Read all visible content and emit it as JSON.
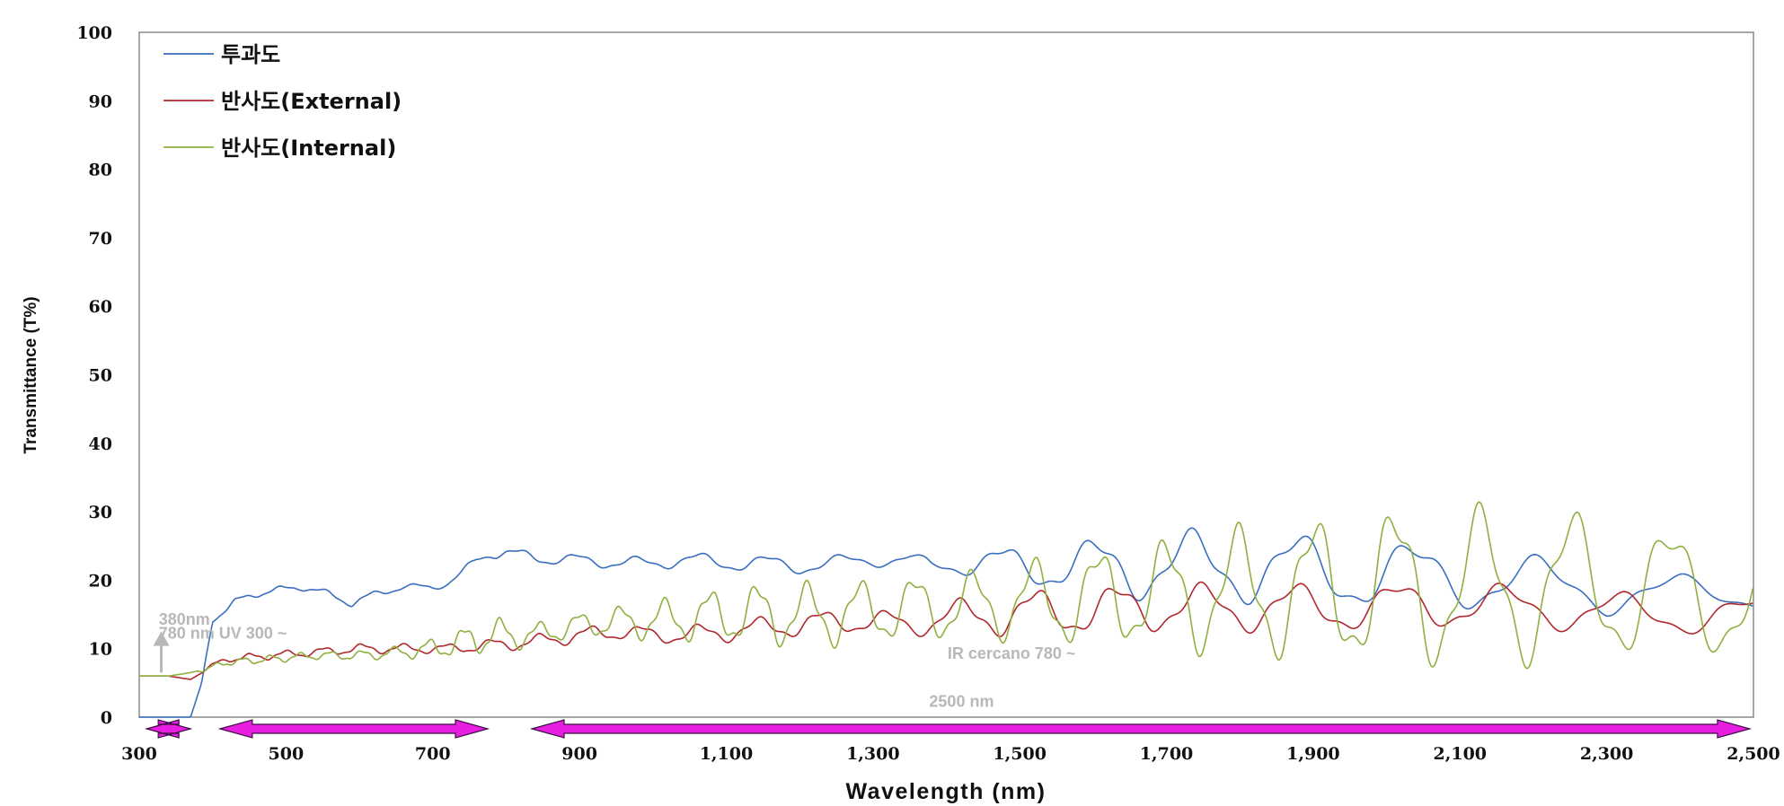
{
  "chart_data": {
    "type": "line",
    "title": "",
    "xlabel": "Wavelength (nm)",
    "ylabel": "Transmittance (T%)",
    "xlim": [
      300,
      2500
    ],
    "ylim": [
      0,
      100
    ],
    "x_ticks": [
      300,
      500,
      700,
      900,
      1100,
      1300,
      1500,
      1700,
      1900,
      2100,
      2300,
      2500
    ],
    "x_tick_labels": [
      "300",
      "500",
      "700",
      "900",
      "1,100",
      "1,300",
      "1,500",
      "1,700",
      "1,900",
      "2,100",
      "2,300",
      "2,500"
    ],
    "y_ticks": [
      0,
      10,
      20,
      30,
      40,
      50,
      60,
      70,
      80,
      90,
      100
    ],
    "y_tick_labels": [
      "0",
      "10",
      "20",
      "30",
      "40",
      "50",
      "60",
      "70",
      "80",
      "90",
      "100"
    ],
    "grid": false,
    "legend_position": "top-left",
    "series": [
      {
        "name": "투과도",
        "color": "#3a6fbf",
        "x": [
          300,
          340,
          370,
          385,
          400,
          430,
          480,
          520,
          560,
          590,
          620,
          660,
          700,
          720,
          740,
          760,
          780,
          800,
          830,
          860,
          900,
          950,
          1000,
          1050,
          1100,
          1150,
          1200,
          1250,
          1300,
          1350,
          1380,
          1420,
          1460,
          1500,
          1550,
          1600,
          1650,
          1700,
          1750,
          1800,
          1850,
          1900,
          1950,
          2000,
          2050,
          2100,
          2150,
          2200,
          2250,
          2300,
          2350,
          2400,
          2450,
          2500
        ],
        "y": [
          0,
          0,
          0,
          5,
          14,
          17,
          18.5,
          19,
          18,
          16.5,
          18,
          19,
          19,
          19.5,
          21,
          23,
          24,
          24,
          23.5,
          23,
          23,
          22.5,
          22.5,
          23,
          22.5,
          22.5,
          22,
          22.5,
          23,
          23,
          22,
          22.5,
          22.5,
          22,
          22,
          22,
          22,
          22,
          22,
          22,
          21.5,
          21.5,
          21,
          21,
          20.5,
          20.5,
          20,
          19.5,
          19,
          18.5,
          18,
          18,
          18,
          18
        ],
        "osc_amp": [
          0,
          0,
          0,
          0,
          0.3,
          0.3,
          0.4,
          0.4,
          0.4,
          0.4,
          0.4,
          0.4,
          0.4,
          0.4,
          0.5,
          0.6,
          0.7,
          0.7,
          0.7,
          0.7,
          0.7,
          0.8,
          0.8,
          0.9,
          1,
          1,
          1,
          1,
          0.9,
          0.9,
          1,
          1.5,
          2,
          2.5,
          3,
          3.5,
          4,
          4.5,
          4.5,
          4.5,
          4.5,
          4.5,
          4.5,
          4.5,
          4,
          4,
          4,
          3.5,
          3,
          3,
          2.5,
          2.5,
          2,
          2
        ],
        "osc_period": 40
      },
      {
        "name": "반사도(External)",
        "color": "#b0282e",
        "x": [
          300,
          340,
          370,
          390,
          420,
          480,
          540,
          600,
          660,
          720,
          780,
          840,
          900,
          960,
          1000,
          1050,
          1100,
          1150,
          1200,
          1250,
          1300,
          1350,
          1400,
          1450,
          1500,
          1550,
          1600,
          1650,
          1700,
          1750,
          1800,
          1850,
          1900,
          1950,
          2000,
          2050,
          2100,
          2150,
          2200,
          2250,
          2300,
          2350,
          2400,
          2450,
          2500
        ],
        "y": [
          6,
          6,
          5.5,
          7,
          8.5,
          9,
          9.5,
          10,
          10,
          10,
          10.5,
          11,
          12,
          12.5,
          12,
          12,
          12.5,
          13,
          13.5,
          14,
          14,
          13.5,
          14.5,
          15,
          15,
          15.5,
          15.5,
          16,
          16,
          16,
          16,
          16,
          16,
          16,
          16,
          16.5,
          16.5,
          16,
          16,
          15.5,
          15.5,
          15,
          15,
          15,
          14.5
        ],
        "osc_amp": [
          0,
          0,
          0,
          0.3,
          0.4,
          0.5,
          0.5,
          0.6,
          0.6,
          0.6,
          0.8,
          0.9,
          1,
          1,
          1,
          1.2,
          1.3,
          1.4,
          1.5,
          1.5,
          1.5,
          1.5,
          2,
          2.5,
          3,
          3,
          3,
          3,
          3,
          3,
          3,
          3,
          3,
          3,
          3,
          3,
          3,
          3,
          2.5,
          2.5,
          2.5,
          2.5,
          2.5,
          2.5,
          2.5
        ],
        "osc_period": 35
      },
      {
        "name": "반사도(Internal)",
        "color": "#8fb03f",
        "x": [
          300,
          340,
          370,
          390,
          420,
          480,
          540,
          600,
          660,
          700,
          720,
          740,
          760,
          780,
          800,
          840,
          900,
          960,
          1000,
          1050,
          1100,
          1150,
          1200,
          1250,
          1300,
          1350,
          1400,
          1450,
          1500,
          1550,
          1600,
          1650,
          1700,
          1750,
          1800,
          1850,
          1900,
          1950,
          2000,
          2050,
          2100,
          2150,
          2200,
          2250,
          2300,
          2350,
          2400,
          2450,
          2500
        ],
        "y": [
          6,
          6,
          6.5,
          7,
          8,
          8.5,
          9,
          9,
          9.5,
          10,
          10.5,
          11,
          11.5,
          12,
          12,
          12,
          13.5,
          14,
          14,
          14.5,
          15,
          15,
          15,
          15,
          15.5,
          16,
          16,
          16.5,
          17,
          17,
          17.5,
          18,
          18,
          18,
          18.5,
          18.5,
          18.5,
          19,
          19,
          19,
          19,
          19,
          19,
          19,
          19,
          18.5,
          18.5,
          18,
          17.5
        ],
        "osc_amp": [
          0,
          0,
          0,
          0.3,
          0.4,
          0.5,
          0.5,
          0.6,
          0.8,
          1.3,
          1.5,
          1.8,
          2,
          2.2,
          2,
          1.5,
          1.5,
          2,
          2.5,
          3,
          3.5,
          4,
          4,
          4,
          4,
          4,
          4,
          4.5,
          5,
          5.5,
          6,
          6.5,
          7,
          7.5,
          8,
          8.5,
          9,
          9.5,
          10,
          10,
          10,
          10,
          9.5,
          9.5,
          9,
          8.5,
          8,
          8,
          8
        ],
        "osc_period": 28
      }
    ],
    "annotations": [
      {
        "text": "380nm",
        "x": 345,
        "y": 13.5
      },
      {
        "text": "780 nm UV 300 ~",
        "x": 345,
        "y": 11.5
      },
      {
        "text": "IR cercano 780 ~",
        "x": 1420,
        "y": 8.5
      },
      {
        "text": "2500 nm",
        "x": 1395,
        "y": 1.5
      }
    ],
    "range_arrows": [
      {
        "from": 310,
        "to": 370
      },
      {
        "from": 410,
        "to": 775
      },
      {
        "from": 835,
        "to": 2495
      }
    ],
    "marker_arrow": {
      "x": 330,
      "y_from": 6.5,
      "y_to": 12.5
    }
  }
}
